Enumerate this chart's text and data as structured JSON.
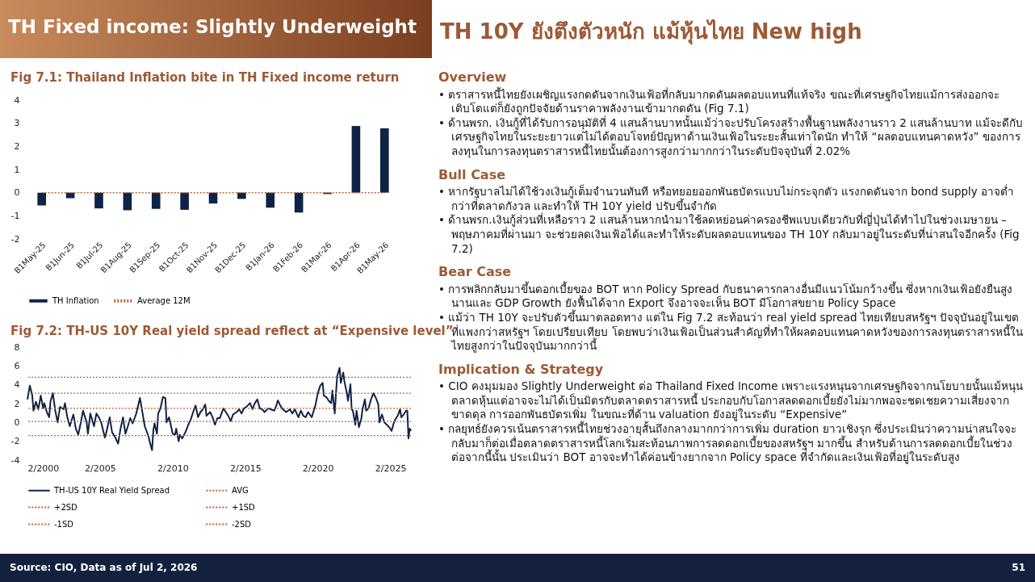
{
  "chart_data": [
    {
      "type": "bar",
      "title": "Fig 7.1: Thailand Inflation bite in TH Fixed income return",
      "categories": [
        "B1May-25",
        "B1Jun-25",
        "B1Jul-25",
        "B1Aug-25",
        "B1Sep-25",
        "B1Oct-25",
        "B1Nov-25",
        "B1Dec-25",
        "B1Jan-26",
        "B1Feb-26",
        "B1Mar-26",
        "B1Apr-26",
        "B1May-26"
      ],
      "series": [
        {
          "name": "TH Inflation",
          "type": "bar",
          "color": "#0e2346",
          "values": [
            -0.55,
            -0.24,
            -0.68,
            -0.76,
            -0.7,
            -0.74,
            -0.47,
            -0.27,
            -0.65,
            -0.86,
            -0.06,
            2.88,
            2.78
          ]
        },
        {
          "name": "Average 12M",
          "type": "line",
          "color": "#b5673a",
          "line_style": "dotted",
          "values": [
            0,
            0,
            0,
            0,
            0,
            0,
            0,
            0,
            0,
            0,
            0,
            0,
            0
          ]
        }
      ],
      "ylim": [
        -2,
        4
      ],
      "yticks": [
        -2,
        -1,
        0,
        1,
        2,
        3,
        4
      ],
      "legend": "bottom"
    },
    {
      "type": "line",
      "title": "Fig 7.2: TH-US 10Y Real yield spread reflect at “Expensive level”",
      "series": [
        {
          "name": "TH-US 10Y Real Yield Spread",
          "color": "#0e2346",
          "x": [
            "2000-02",
            "2000-04",
            "2000-06",
            "2000-07",
            "2000-09",
            "2000-11",
            "2001-01",
            "2001-03",
            "2001-04",
            "2001-06",
            "2001-08",
            "2001-09",
            "2001-11",
            "2002-01",
            "2002-03",
            "2002-05",
            "2002-08",
            "2002-09",
            "2002-11",
            "2003-01",
            "2003-04",
            "2003-06",
            "2003-08",
            "2003-10",
            "2003-12",
            "2004-03",
            "2004-04",
            "2004-06",
            "2004-09",
            "2004-11",
            "2005-01",
            "2005-03",
            "2005-06",
            "2005-07",
            "2005-10",
            "2005-12",
            "2006-02",
            "2006-05",
            "2006-07",
            "2006-09",
            "2006-11",
            "2007-01",
            "2007-03",
            "2007-05",
            "2007-08",
            "2007-10",
            "2007-11",
            "2008-01",
            "2008-03",
            "2008-06",
            "2008-07",
            "2008-09",
            "2008-10",
            "2008-11",
            "2009-01",
            "2009-02",
            "2009-04",
            "2009-06",
            "2009-08",
            "2009-09",
            "2009-11",
            "2009-12",
            "2010-02",
            "2010-04",
            "2010-05",
            "2010-07",
            "2010-08",
            "2010-10",
            "2011-01",
            "2011-03",
            "2011-05",
            "2011-07",
            "2011-09",
            "2011-11",
            "2012-01",
            "2012-03",
            "2012-05",
            "2012-06",
            "2012-09",
            "2012-11",
            "2013-01",
            "2013-03",
            "2013-05",
            "2013-08",
            "2013-10",
            "2013-12",
            "2014-02",
            "2014-04",
            "2014-07",
            "2014-09",
            "2014-11",
            "2015-01",
            "2015-03",
            "2015-06",
            "2015-08",
            "2015-10",
            "2015-12",
            "2016-02",
            "2016-04",
            "2016-06",
            "2016-09",
            "2016-11",
            "2017-02",
            "2017-04",
            "2017-05",
            "2017-07",
            "2017-09",
            "2017-12",
            "2018-03",
            "2018-05",
            "2018-07",
            "2018-10",
            "2018-12",
            "2019-02",
            "2019-04",
            "2019-06",
            "2019-09",
            "2019-11",
            "2019-12",
            "2020-02",
            "2020-04",
            "2020-06",
            "2020-07",
            "2020-09",
            "2020-11",
            "2021-01",
            "2021-02",
            "2021-04",
            "2021-05",
            "2021-06",
            "2021-08",
            "2021-09",
            "2021-11",
            "2021-12",
            "2022-02",
            "2022-03",
            "2022-05",
            "2022-06",
            "2022-07",
            "2022-09",
            "2022-10",
            "2022-12",
            "2023-02",
            "2023-03",
            "2023-05",
            "2023-06",
            "2023-08",
            "2023-10",
            "2023-12",
            "2024-02",
            "2024-04",
            "2024-05",
            "2024-07",
            "2024-09",
            "2024-11",
            "2025-01",
            "2025-03",
            "2025-05",
            "2025-06",
            "2025-08",
            "2025-10",
            "2025-11",
            "2026-01",
            "2026-03",
            "2026-04",
            "2026-05",
            "2026-06",
            "2026-07"
          ],
          "values": [
            2.45,
            3.9,
            2.85,
            1.25,
            2.2,
            1.4,
            2.85,
            1.5,
            2.05,
            1.1,
            0.55,
            2.2,
            3.1,
            1.25,
            0.0,
            1.65,
            1.4,
            2.05,
            0.55,
            -0.4,
            0.85,
            -0.65,
            -1.3,
            -0.1,
            1.25,
            0.0,
            -1.2,
            0.95,
            -0.4,
            0.95,
            0.55,
            0.0,
            -1.6,
            -1.2,
            0.55,
            -1.05,
            -1.45,
            -2.25,
            -0.65,
            0.55,
            -1.2,
            -0.4,
            0.45,
            -0.1,
            0.95,
            2.05,
            2.6,
            1.1,
            -0.4,
            -1.45,
            -2.0,
            -2.95,
            -0.9,
            -0.1,
            -1.2,
            0.95,
            1.5,
            2.7,
            2.6,
            0.0,
            0.55,
            0.0,
            -1.2,
            -1.3,
            -0.65,
            -2.0,
            -1.3,
            -1.7,
            -0.9,
            -0.25,
            0.3,
            1.1,
            1.8,
            0.55,
            1.1,
            1.4,
            1.9,
            0.7,
            1.1,
            0.55,
            -0.25,
            0.45,
            0.45,
            1.5,
            1.1,
            0.7,
            0.15,
            0.85,
            1.1,
            1.4,
            0.95,
            1.5,
            1.65,
            2.05,
            1.4,
            2.05,
            2.45,
            1.5,
            1.4,
            1.1,
            1.5,
            1.4,
            1.25,
            1.9,
            2.35,
            1.8,
            1.4,
            1.1,
            1.4,
            0.95,
            1.4,
            0.55,
            1.25,
            0.7,
            0.55,
            1.1,
            0.55,
            1.4,
            1.8,
            3.1,
            3.9,
            4.2,
            2.85,
            2.7,
            2.3,
            2.05,
            3.4,
            0.95,
            3.0,
            4.9,
            5.8,
            4.2,
            5.3,
            4.35,
            3.1,
            2.3,
            4.05,
            1.4,
            1.25,
            -0.25,
            1.25,
            -0.5,
            0.45,
            1.4,
            2.45,
            1.25,
            1.5,
            2.45,
            3.1,
            2.6,
            1.9,
            0.0,
            0.85,
            0.0,
            -0.25,
            -0.5,
            -0.9,
            0.0,
            0.3,
            0.7,
            1.4,
            0.55,
            0.85,
            1.25,
            1.25,
            -1.7,
            -0.65,
            -0.9
          ]
        }
      ],
      "ref_lines": [
        {
          "axis": "y",
          "value": 1.5,
          "label": "AVG",
          "color": "#b5673a",
          "line_style": "dotted"
        },
        {
          "axis": "y",
          "value": 4.8,
          "label": "+2SD",
          "color": "#b5673a",
          "line_style": "dotted"
        },
        {
          "axis": "y",
          "value": 3.1,
          "label": "+1SD",
          "color": "#b5673a",
          "line_style": "dotted"
        },
        {
          "axis": "y",
          "value": 0.1,
          "label": "-1SD",
          "color": "#b5673a",
          "line_style": "dotted"
        },
        {
          "axis": "y",
          "value": -1.4,
          "label": "-2SD",
          "color": "#b5673a",
          "line_style": "dotted"
        }
      ],
      "xlim": [
        "2000-02",
        "2026-07"
      ],
      "xticks": [
        {
          "value": "2000-02",
          "label": "2/2000"
        },
        {
          "value": "2005-02",
          "label": "2/2005"
        },
        {
          "value": "2010-02",
          "label": "2/2010"
        },
        {
          "value": "2015-02",
          "label": "2/2015"
        },
        {
          "value": "2020-02",
          "label": "2/2020"
        },
        {
          "value": "2025-02",
          "label": "2/2025"
        }
      ],
      "ylim": [
        -4,
        8
      ],
      "yticks": [
        -4,
        -2,
        0,
        2,
        4,
        6,
        8
      ],
      "legend": "bottom"
    },
    {
      "type": "other",
      "title": "TH 10Y ยังตึงตัวหนัก แม้หุ้นไทย New high",
      "subtitle": "TH Fixed income: Slightly Underweight",
      "annotations": [
        "Overview",
        "•  ตราสารหนี้ไทยยังเผชิญแรงกดดันจากเงินเฟ้อที่กลับมากดดันผลตอบแทนที่แท้จริง ขณะที่เศรษฐกิจไทยแม้การส่งออกจะเติบโตแต่ก็ยังถูกปัจจัยด้านราคาพลังงานเข้ามากดดัน  (Fig 7.1)",
        "•  ด้านพรก. เงินกู้ที่ได้รับการอนุมัติที่ 4 แสนล้านบาทนั้นแม้ว่าจะปรับโครงสร้างพื้นฐานพลังงานราว 2 แสนล้านบาท แม้จะดีกับเศรษฐกิจไทยในระยะยาวแต่ไม่ได้ตอบโจทย์ปัญหาด้านเงินเฟ้อในระยะสั้นเท่าใดนัก ทำให้ “ผลตอบแทนคาดหวัง” ของการลงทุนในการลงทุนตราสารหนี้ไทยนั้นต้องการสูงกว่ามากกว่าในระดับปัจจุบันที่ 2.02%",
        "Bull Case",
        "•  หากรัฐบาลไม่ได้ใช้วงเงินกู้เต็มจำนวนทันที หรือทยอยออกพันธบัตรแบบไม่กระจุกตัว แรงกดดันจาก bond supply อาจต่ำกว่าที่ตลาดกังวล และทำให้ TH 10Y yield ปรับขึ้นจำกัด",
        "•  ด้านพรก.เงินกู้ส่วนที่เหลือราว 2 แสนล้านหากนำมาใช้ลดหย่อนค่าครองชีพแบบเดียวกับที่ญี่ปุ่นได้ทำไปในช่วงเมษายน – พฤษภาคมที่ผ่านมา จะช่วยลดเงินเฟ้อได้และทำให้ระดับผลตอบแทนของ TH 10Y กลับมาอยู่ในระดับที่น่าสนใจอีกครั้ง (Fig 7.2)",
        "Bear Case",
        "•  การพลิกกลับมาขึ้นดอกเบี้ยของ BOT หาก Policy Spread กับธนาคารกลางอื่นมีแนวโน้มกว้างขึ้น ซึ่งหากเงินเฟ้อยังยืนสูงนานและ GDP Growth ยังฟื้นได้จาก Export จึงอาจจะเห็น BOT มีโอกาสขยาย Policy Space",
        "•  แม้ว่า TH 10Y จะปรับตัวขึ้นมาตลอดทาง แต่ใน Fig 7.2 สะท้อนว่า real yield spread ไทยเทียบสหรัฐฯ ปัจจุบันอยู่ในเขตที่แพงกว่าสหรัฐฯ โดยเปรียบเทียบ โดยพบว่าเงินเฟ้อเป็นส่วนสำคัญที่ทำให้ผลตอบแทนคาดหวังของการลงทุนตราสารหนี้ในไทยสูงกว่าในปัจจุบันมากกว่านี้",
        "Implication & Strategy",
        "•  CIO คงมุมมอง Slightly Underweight ต่อ Thailand Fixed Income เพราะแรงหนุนจากเศรษฐกิจจากนโยบายนั้นแม้หนุนตลาดหุ้นแต่อาจจะไม่ได้เป็นมิตรกับตลาดตราสารหนี้ ประกอบกับโอกาสลดดอกเบี้ยยังไม่มากพอจะชดเชยความเสี่ยงจากขาดดุล การออกพันธบัตรเพิ่ม ในขณะที่ด้าน valuation ยังอยู่ในระดับ “Expensive”",
        "•  กลยุทธ์ยังควรเน้นตราสารหนี้ไทยช่วงอายุสั้นถึงกลางมากกว่าการเพิ่ม duration ยาวเชิงรุก ซึ่งประเมินว่าความน่าสนใจจะกลับมาก็ต่อเมื่อตลาดตราสารหนี้โลกเริ่มสะท้อนภาพการลดดอกเบี้ยของสหรัฐฯ มากขึ้น สำหรับด้านการลดดอกเบี้ยในช่วงต่อจากนี้นั้น ประเมินว่า BOT อาจจะทำได้ค่อนข้างยากจาก Policy space ที่จำกัดและเงินเฟ้อที่อยู่ในระดับสูง",
        "Source: CIO, Data as of Jul 2, 2026",
        "51"
      ]
    }
  ]
}
